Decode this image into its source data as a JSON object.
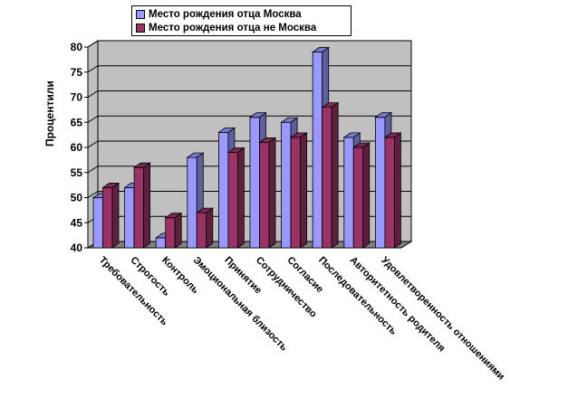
{
  "legend": {
    "series1": "Место рождения отца Москва",
    "series2": "Место рождения отца не Москва"
  },
  "colors": {
    "series1": "#9999ff",
    "series2": "#993366",
    "wall": "#c0c0c0",
    "floor": "#808080"
  },
  "chart_data": {
    "type": "bar",
    "ylabel": "Процентили",
    "ylim": [
      40,
      80
    ],
    "yticks": [
      "40",
      "45",
      "50",
      "55",
      "60",
      "65",
      "70",
      "75",
      "80"
    ],
    "grid": true,
    "legend_position": "top",
    "categories": [
      "Требовательность",
      "Строгость",
      "Контроль",
      "Эмоциональная близость",
      "Принятие",
      "Сотрудничество",
      "Согласие",
      "Последовательность",
      "Авторитетность родителя",
      "Удовлетворенность отношениями"
    ],
    "series": [
      {
        "name": "Место рождения отца Москва",
        "values": [
          50,
          52,
          42,
          58,
          63,
          66,
          65,
          79,
          62,
          66
        ]
      },
      {
        "name": "Место рождения отца не Москва",
        "values": [
          52,
          56,
          46,
          47,
          59,
          61,
          62,
          68,
          60,
          62
        ]
      }
    ]
  }
}
